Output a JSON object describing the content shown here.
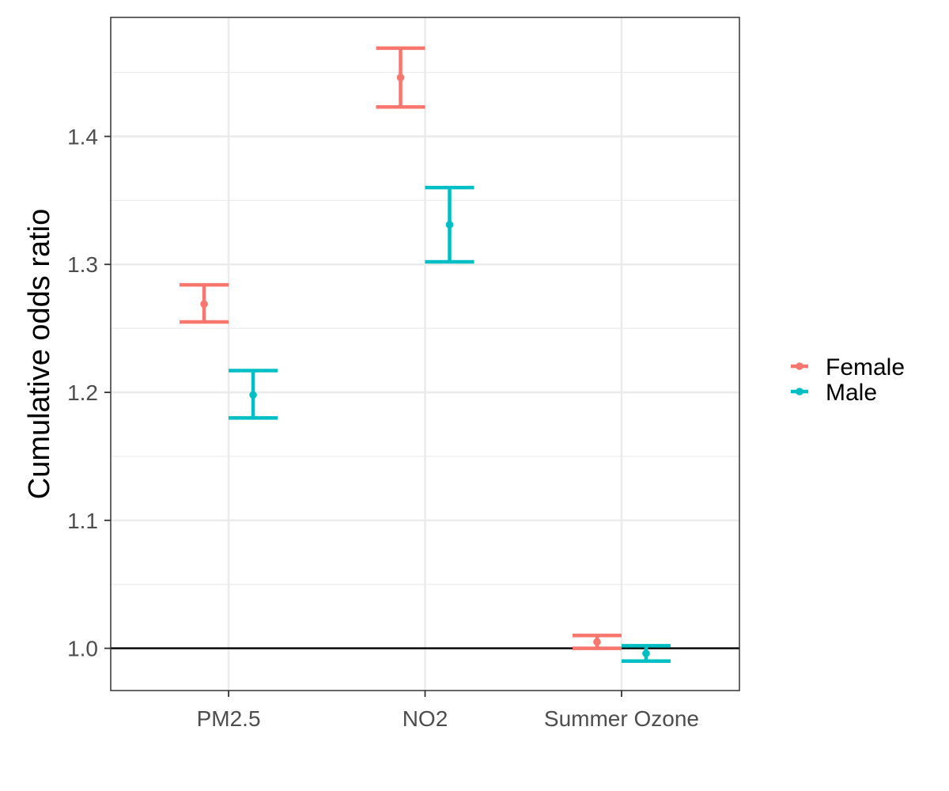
{
  "chart_data": {
    "type": "errorbar",
    "title": "",
    "xlabel": "",
    "ylabel": "Cumulative odds ratio",
    "categories": [
      "PM2.5",
      "NO2",
      "Summer Ozone"
    ],
    "ylim": [
      0.967,
      1.493
    ],
    "yticks": [
      1.0,
      1.1,
      1.2,
      1.3,
      1.4
    ],
    "ytick_labels": [
      "1.0",
      "1.1",
      "1.2",
      "1.3",
      "1.4"
    ],
    "reference_line": 1.0,
    "grid": true,
    "legend_position": "right",
    "series": [
      {
        "name": "Female",
        "color": "#F8766D",
        "estimates": [
          1.269,
          1.446,
          1.005
        ],
        "lower": [
          1.255,
          1.423,
          1.0
        ],
        "upper": [
          1.284,
          1.469,
          1.01
        ]
      },
      {
        "name": "Male",
        "color": "#00BFC4",
        "estimates": [
          1.198,
          1.331,
          0.996
        ],
        "lower": [
          1.18,
          1.302,
          0.99
        ],
        "upper": [
          1.217,
          1.36,
          1.002
        ]
      }
    ]
  }
}
